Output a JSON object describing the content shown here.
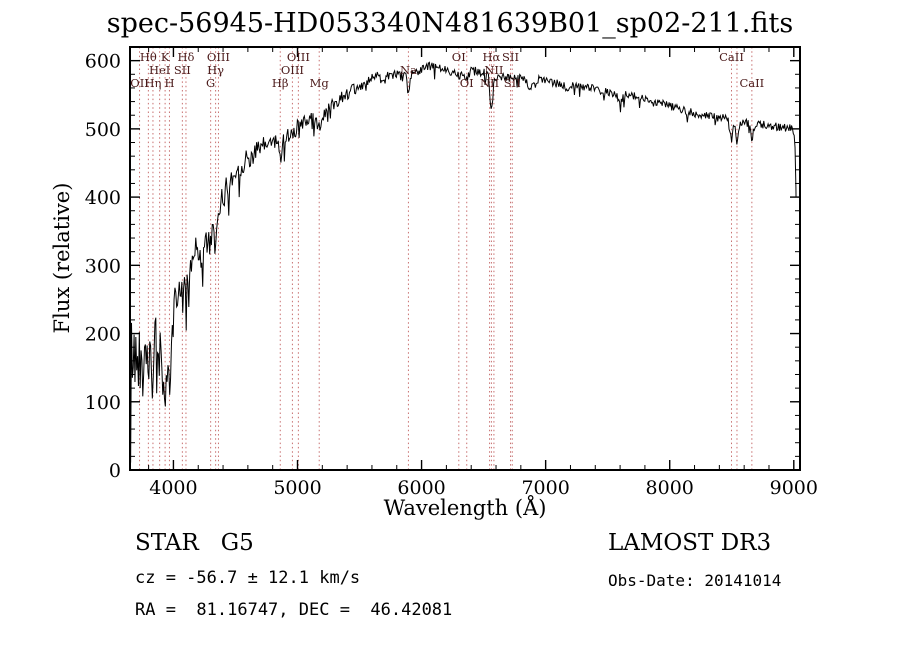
{
  "header": {
    "title": "spec-56945-HD053340N481639B01_sp02-211.fits"
  },
  "chart_data": {
    "type": "line",
    "title": "spec-56945-HD053340N481639B01_sp02-211.fits",
    "xlabel": "Wavelength (Å)",
    "ylabel": "Flux (relative)",
    "xlim": [
      3650,
      9050
    ],
    "ylim": [
      0,
      620
    ],
    "xticks": [
      4000,
      5000,
      6000,
      7000,
      8000,
      9000
    ],
    "yticks": [
      0,
      100,
      200,
      300,
      400,
      500,
      600
    ],
    "x_minor_step": 200,
    "y_minor_step": 20,
    "line_color": "#000000",
    "marker_line_color": "#c87070",
    "marker_label_color": "#4a1a1a",
    "envelope_points": [
      [
        3655,
        2
      ],
      [
        3658,
        120
      ],
      [
        3662,
        185
      ],
      [
        3670,
        160
      ],
      [
        3680,
        175
      ],
      [
        3690,
        150
      ],
      [
        3700,
        185
      ],
      [
        3710,
        150
      ],
      [
        3725,
        175
      ],
      [
        3740,
        195
      ],
      [
        3760,
        165
      ],
      [
        3775,
        200
      ],
      [
        3790,
        175
      ],
      [
        3800,
        150
      ],
      [
        3815,
        185
      ],
      [
        3830,
        135
      ],
      [
        3840,
        115
      ],
      [
        3850,
        185
      ],
      [
        3865,
        200
      ],
      [
        3880,
        160
      ],
      [
        3895,
        175
      ],
      [
        3910,
        140
      ],
      [
        3925,
        120
      ],
      [
        3933,
        90
      ],
      [
        3942,
        150
      ],
      [
        3955,
        135
      ],
      [
        3968,
        105
      ],
      [
        3980,
        160
      ],
      [
        4000,
        225
      ],
      [
        4020,
        250
      ],
      [
        4045,
        270
      ],
      [
        4070,
        255
      ],
      [
        4101,
        265
      ],
      [
        4130,
        300
      ],
      [
        4160,
        315
      ],
      [
        4190,
        325
      ],
      [
        4226,
        310
      ],
      [
        4260,
        335
      ],
      [
        4300,
        330
      ],
      [
        4320,
        345
      ],
      [
        4340,
        330
      ],
      [
        4360,
        360
      ],
      [
        4390,
        395
      ],
      [
        4420,
        410
      ],
      [
        4450,
        420
      ],
      [
        4480,
        430
      ],
      [
        4520,
        440
      ],
      [
        4560,
        450
      ],
      [
        4600,
        455
      ],
      [
        4650,
        465
      ],
      [
        4700,
        470
      ],
      [
        4750,
        478
      ],
      [
        4800,
        482
      ],
      [
        4845,
        478
      ],
      [
        4861,
        455
      ],
      [
        4880,
        482
      ],
      [
        4920,
        490
      ],
      [
        4960,
        495
      ],
      [
        5000,
        502
      ],
      [
        5050,
        510
      ],
      [
        5100,
        515
      ],
      [
        5140,
        512
      ],
      [
        5175,
        502
      ],
      [
        5210,
        520
      ],
      [
        5260,
        532
      ],
      [
        5320,
        542
      ],
      [
        5380,
        550
      ],
      [
        5440,
        556
      ],
      [
        5500,
        562
      ],
      [
        5560,
        568
      ],
      [
        5620,
        574
      ],
      [
        5680,
        578
      ],
      [
        5740,
        580
      ],
      [
        5800,
        578
      ],
      [
        5850,
        576
      ],
      [
        5880,
        574
      ],
      [
        5894,
        545
      ],
      [
        5910,
        578
      ],
      [
        5960,
        585
      ],
      [
        6010,
        590
      ],
      [
        6060,
        591
      ],
      [
        6110,
        590
      ],
      [
        6160,
        588
      ],
      [
        6210,
        586
      ],
      [
        6260,
        584
      ],
      [
        6300,
        578
      ],
      [
        6330,
        583
      ],
      [
        6364,
        576
      ],
      [
        6400,
        584
      ],
      [
        6450,
        586
      ],
      [
        6500,
        582
      ],
      [
        6540,
        576
      ],
      [
        6563,
        522
      ],
      [
        6585,
        574
      ],
      [
        6620,
        578
      ],
      [
        6660,
        576
      ],
      [
        6700,
        574
      ],
      [
        6740,
        576
      ],
      [
        6790,
        576
      ],
      [
        6830,
        572
      ],
      [
        6860,
        562
      ],
      [
        6880,
        556
      ],
      [
        6905,
        570
      ],
      [
        6950,
        572
      ],
      [
        7000,
        570
      ],
      [
        7050,
        568
      ],
      [
        7100,
        566
      ],
      [
        7150,
        562
      ],
      [
        7185,
        556
      ],
      [
        7220,
        564
      ],
      [
        7280,
        562
      ],
      [
        7340,
        560
      ],
      [
        7400,
        558
      ],
      [
        7460,
        556
      ],
      [
        7520,
        552
      ],
      [
        7570,
        548
      ],
      [
        7600,
        540
      ],
      [
        7640,
        550
      ],
      [
        7700,
        548
      ],
      [
        7760,
        546
      ],
      [
        7820,
        543
      ],
      [
        7880,
        540
      ],
      [
        7940,
        537
      ],
      [
        8000,
        534
      ],
      [
        8060,
        530
      ],
      [
        8120,
        527
      ],
      [
        8180,
        524
      ],
      [
        8240,
        521
      ],
      [
        8300,
        519
      ],
      [
        8360,
        517
      ],
      [
        8420,
        516
      ],
      [
        8470,
        515
      ],
      [
        8498,
        478
      ],
      [
        8515,
        512
      ],
      [
        8542,
        480
      ],
      [
        8570,
        511
      ],
      [
        8610,
        509
      ],
      [
        8640,
        508
      ],
      [
        8662,
        483
      ],
      [
        8690,
        507
      ],
      [
        8740,
        506
      ],
      [
        8790,
        505
      ],
      [
        8840,
        504
      ],
      [
        8890,
        503
      ],
      [
        8930,
        502
      ],
      [
        8960,
        501
      ],
      [
        8990,
        500
      ],
      [
        9005,
        495
      ],
      [
        9012,
        460
      ],
      [
        9018,
        405
      ]
    ],
    "noise": {
      "seed": 42,
      "base_amp": 6,
      "blue_amp": 38,
      "decay_scale": 700,
      "spike_prob": 0.05,
      "spike_mult": 1.8,
      "step": 7
    },
    "markers": [
      {
        "wavelength": 3727,
        "label": "OII",
        "row": 3
      },
      {
        "wavelength": 3798,
        "label": "Hθ",
        "row": 1
      },
      {
        "wavelength": 3835,
        "label": "Hη",
        "row": 3
      },
      {
        "wavelength": 3889,
        "label": "HeI",
        "row": 2
      },
      {
        "wavelength": 3933,
        "label": "K",
        "row": 1
      },
      {
        "wavelength": 3968,
        "label": "H",
        "row": 3
      },
      {
        "wavelength": 4072,
        "label": "SII",
        "row": 2
      },
      {
        "wavelength": 4101,
        "label": "Hδ",
        "row": 1
      },
      {
        "wavelength": 4300,
        "label": "G",
        "row": 3
      },
      {
        "wavelength": 4340,
        "label": "Hγ",
        "row": 2
      },
      {
        "wavelength": 4363,
        "label": "OIII",
        "row": 1
      },
      {
        "wavelength": 4861,
        "label": "Hβ",
        "row": 3
      },
      {
        "wavelength": 4959,
        "label": "OIII",
        "row": 2
      },
      {
        "wavelength": 5007,
        "label": "OIII",
        "row": 1
      },
      {
        "wavelength": 5175,
        "label": "Mg",
        "row": 3
      },
      {
        "wavelength": 5894,
        "label": "Na",
        "row": 2
      },
      {
        "wavelength": 6300,
        "label": "OI",
        "row": 1
      },
      {
        "wavelength": 6364,
        "label": "OI",
        "row": 3
      },
      {
        "wavelength": 6548,
        "label": "NII",
        "row": 3
      },
      {
        "wavelength": 6563,
        "label": "Hα",
        "row": 1
      },
      {
        "wavelength": 6583,
        "label": "NII",
        "row": 2
      },
      {
        "wavelength": 6717,
        "label": "SII",
        "row": 1
      },
      {
        "wavelength": 6731,
        "label": "SII",
        "row": 3
      },
      {
        "wavelength": 8498,
        "label": "CaII",
        "row": 1
      },
      {
        "wavelength": 8542,
        "label": "",
        "row": 2
      },
      {
        "wavelength": 8662,
        "label": "CaII",
        "row": 3
      }
    ]
  },
  "footer": {
    "classification": "STAR   G5",
    "cz": "cz = -56.7 ± 12.1 km/s",
    "radec": "RA =  81.16747, DEC =  46.42081",
    "survey": "LAMOST DR3",
    "obs_date": "Obs-Date: 20141014"
  }
}
